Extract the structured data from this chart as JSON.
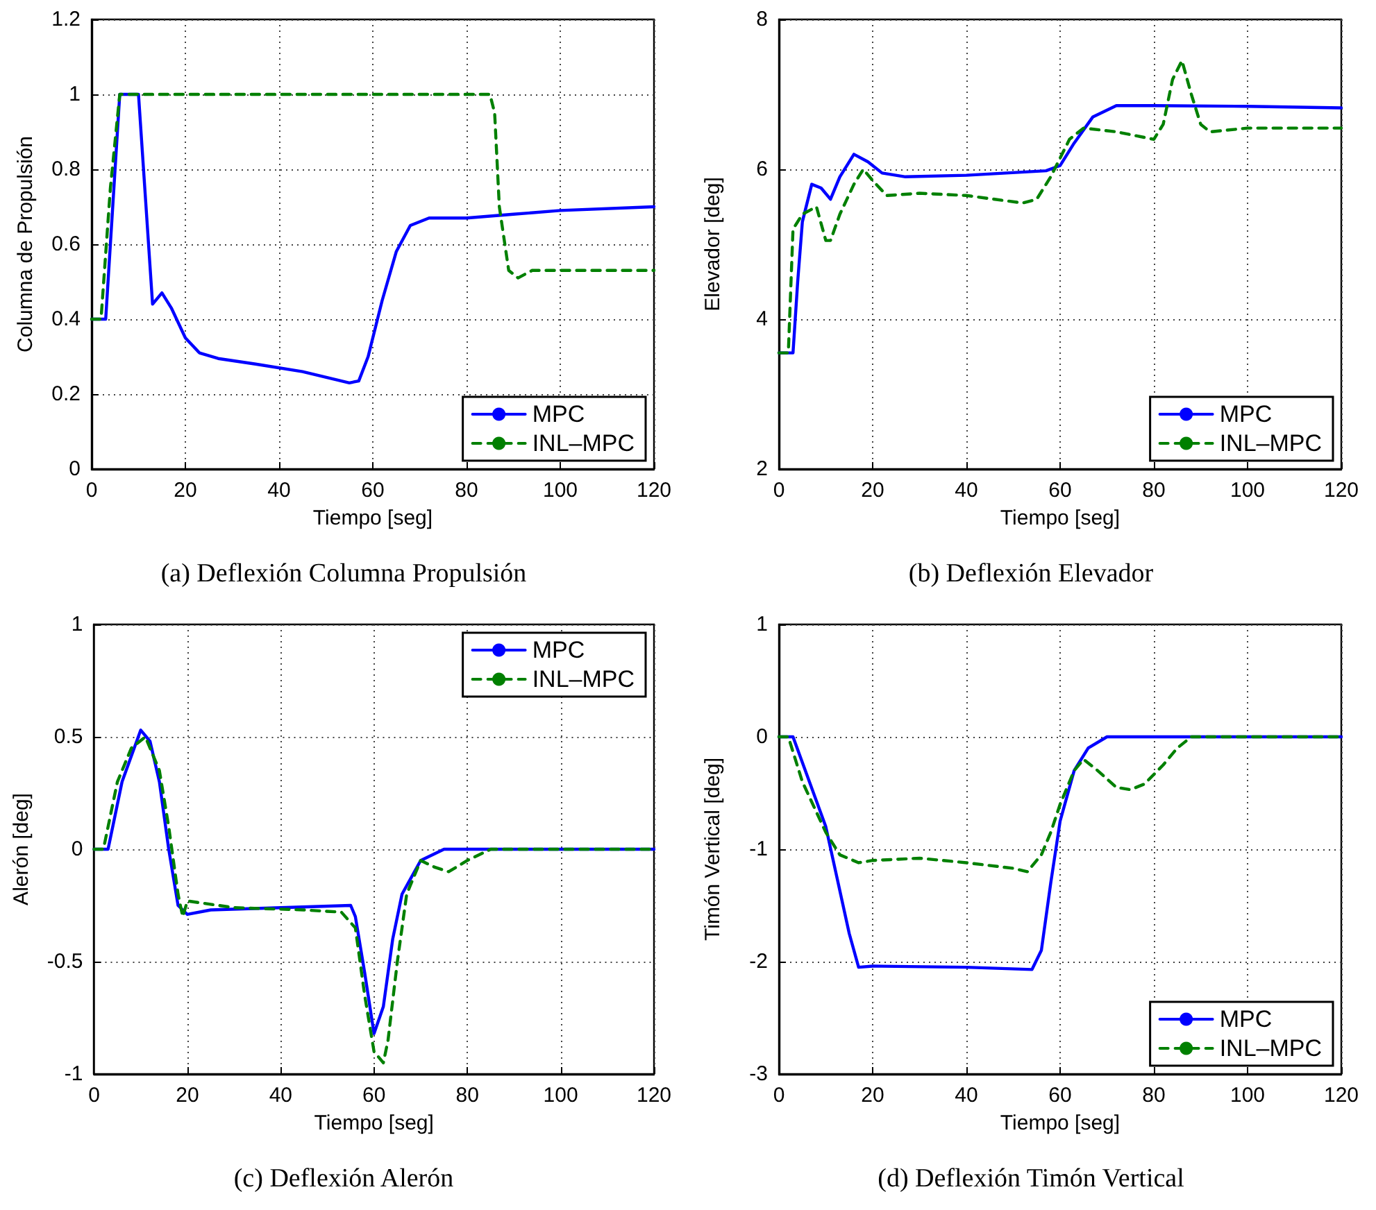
{
  "chart_data": [
    {
      "type": "line",
      "title": "(a) Deflexión Columna Propulsión",
      "xlabel": "Tiempo [seg]",
      "ylabel": "Columna de Propulsión",
      "xlim": [
        0,
        120
      ],
      "xticks": [
        0,
        20,
        40,
        60,
        80,
        100,
        120
      ],
      "ylim": [
        0,
        1.2
      ],
      "yticks": [
        0,
        0.2,
        0.4,
        0.6,
        0.8,
        1,
        1.2
      ],
      "grid": true,
      "legend": "bottom right",
      "marker": "none",
      "series": [
        {
          "name": "MPC",
          "color": "#0000ff",
          "line_style": "solid",
          "x": [
            0,
            3,
            6,
            10,
            13,
            15,
            17,
            20,
            23,
            27,
            35,
            45,
            55,
            57,
            59,
            62,
            65,
            68,
            72,
            80,
            90,
            100,
            120
          ],
          "values": [
            0.4,
            0.4,
            1.0,
            1.0,
            0.44,
            0.47,
            0.43,
            0.35,
            0.31,
            0.295,
            0.28,
            0.26,
            0.23,
            0.235,
            0.3,
            0.45,
            0.58,
            0.65,
            0.67,
            0.67,
            0.68,
            0.69,
            0.7
          ]
        },
        {
          "name": "INL–MPC",
          "color": "#008000",
          "line_style": "dashed",
          "x": [
            0,
            2,
            4,
            6,
            85,
            86,
            87,
            89,
            91,
            94,
            120
          ],
          "values": [
            0.4,
            0.4,
            0.75,
            1.0,
            1.0,
            0.95,
            0.7,
            0.53,
            0.51,
            0.53,
            0.53
          ]
        }
      ]
    },
    {
      "type": "line",
      "title": "(b) Deflexión Elevador",
      "xlabel": "Tiempo [seg]",
      "ylabel": "Elevador [deg]",
      "xlim": [
        0,
        120
      ],
      "xticks": [
        0,
        20,
        40,
        60,
        80,
        100,
        120
      ],
      "ylim": [
        2,
        8
      ],
      "yticks": [
        2,
        4,
        6,
        8
      ],
      "grid": true,
      "legend": "bottom right",
      "marker": "none",
      "series": [
        {
          "name": "MPC",
          "color": "#0000ff",
          "line_style": "solid",
          "x": [
            0,
            3,
            4,
            5,
            7,
            9,
            11,
            13,
            16,
            19,
            22,
            27,
            40,
            57,
            60,
            63,
            67,
            72,
            80,
            100,
            120
          ],
          "values": [
            3.55,
            3.55,
            4.5,
            5.3,
            5.8,
            5.75,
            5.6,
            5.9,
            6.2,
            6.1,
            5.95,
            5.9,
            5.92,
            5.98,
            6.05,
            6.35,
            6.7,
            6.85,
            6.85,
            6.84,
            6.82
          ]
        },
        {
          "name": "INL–MPC",
          "color": "#008000",
          "line_style": "dashed",
          "x": [
            0,
            2,
            3,
            5,
            8,
            10,
            11,
            13,
            16,
            18,
            20,
            23,
            30,
            40,
            52,
            55,
            58,
            62,
            65,
            72,
            80,
            82,
            84,
            86,
            88,
            90,
            92,
            100,
            120
          ],
          "values": [
            3.55,
            3.55,
            5.2,
            5.4,
            5.5,
            5.05,
            5.05,
            5.4,
            5.8,
            6.0,
            5.85,
            5.65,
            5.68,
            5.65,
            5.55,
            5.6,
            5.9,
            6.4,
            6.55,
            6.5,
            6.4,
            6.6,
            7.2,
            7.45,
            7.0,
            6.6,
            6.5,
            6.55,
            6.55
          ]
        }
      ]
    },
    {
      "type": "line",
      "title": "(c) Deflexión Alerón",
      "xlabel": "Tiempo [seg]",
      "ylabel": "Alerón [deg]",
      "xlim": [
        0,
        120
      ],
      "xticks": [
        0,
        20,
        40,
        60,
        80,
        100,
        120
      ],
      "ylim": [
        -1,
        1
      ],
      "yticks": [
        -1,
        -0.5,
        0,
        0.5,
        1
      ],
      "grid": true,
      "legend": "top right",
      "marker": "none",
      "series": [
        {
          "name": "MPC",
          "color": "#0000ff",
          "line_style": "solid",
          "x": [
            0,
            3,
            6,
            10,
            12,
            14,
            16,
            18,
            20,
            25,
            40,
            55,
            56,
            58,
            60,
            62,
            64,
            66,
            70,
            75,
            120
          ],
          "values": [
            0,
            0,
            0.3,
            0.53,
            0.48,
            0.3,
            0,
            -0.25,
            -0.29,
            -0.27,
            -0.26,
            -0.25,
            -0.3,
            -0.55,
            -0.82,
            -0.7,
            -0.4,
            -0.2,
            -0.05,
            0,
            0
          ]
        },
        {
          "name": "INL–MPC",
          "color": "#008000",
          "line_style": "dashed",
          "x": [
            0,
            2,
            5,
            8,
            11,
            14,
            16,
            18,
            19,
            20,
            30,
            45,
            53,
            56,
            58,
            60,
            62,
            63,
            65,
            67,
            70,
            73,
            76,
            80,
            85,
            120
          ],
          "values": [
            0,
            0,
            0.3,
            0.45,
            0.5,
            0.35,
            0.1,
            -0.2,
            -0.3,
            -0.23,
            -0.26,
            -0.27,
            -0.28,
            -0.35,
            -0.65,
            -0.9,
            -0.95,
            -0.85,
            -0.5,
            -0.2,
            -0.05,
            -0.08,
            -0.1,
            -0.05,
            0,
            0
          ]
        }
      ]
    },
    {
      "type": "line",
      "title": "(d) Deflexión Timón Vertical",
      "xlabel": "Tiempo [seg]",
      "ylabel": "Timón Vertical [deg]",
      "xlim": [
        0,
        120
      ],
      "xticks": [
        0,
        20,
        40,
        60,
        80,
        100,
        120
      ],
      "ylim": [
        -3,
        1
      ],
      "yticks": [
        -3,
        -2,
        -1,
        0,
        1
      ],
      "grid": true,
      "legend": "bottom right",
      "marker": "none",
      "series": [
        {
          "name": "MPC",
          "color": "#0000ff",
          "line_style": "solid",
          "x": [
            0,
            3,
            10,
            15,
            17,
            20,
            40,
            54,
            56,
            58,
            60,
            63,
            66,
            70,
            120
          ],
          "values": [
            0,
            0,
            -0.8,
            -1.75,
            -2.05,
            -2.04,
            -2.05,
            -2.07,
            -1.9,
            -1.3,
            -0.75,
            -0.3,
            -0.1,
            0,
            0
          ]
        },
        {
          "name": "INL–MPC",
          "color": "#008000",
          "line_style": "dashed",
          "x": [
            0,
            2,
            5,
            10,
            13,
            17,
            20,
            30,
            40,
            50,
            53,
            56,
            58,
            60,
            63,
            65,
            68,
            72,
            75,
            78,
            82,
            85,
            88,
            120
          ],
          "values": [
            0,
            0,
            -0.4,
            -0.85,
            -1.05,
            -1.12,
            -1.1,
            -1.08,
            -1.12,
            -1.17,
            -1.2,
            -1.05,
            -0.85,
            -0.6,
            -0.3,
            -0.2,
            -0.3,
            -0.45,
            -0.47,
            -0.42,
            -0.25,
            -0.1,
            0,
            0
          ]
        }
      ]
    }
  ]
}
